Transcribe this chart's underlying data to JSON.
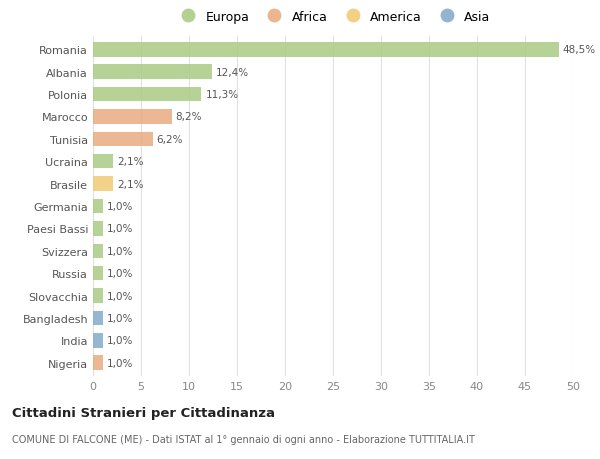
{
  "countries": [
    "Romania",
    "Albania",
    "Polonia",
    "Marocco",
    "Tunisia",
    "Ucraina",
    "Brasile",
    "Germania",
    "Paesi Bassi",
    "Svizzera",
    "Russia",
    "Slovacchia",
    "Bangladesh",
    "India",
    "Nigeria"
  ],
  "values": [
    48.5,
    12.4,
    11.3,
    8.2,
    6.2,
    2.1,
    2.1,
    1.0,
    1.0,
    1.0,
    1.0,
    1.0,
    1.0,
    1.0,
    1.0
  ],
  "labels": [
    "48,5%",
    "12,4%",
    "11,3%",
    "8,2%",
    "6,2%",
    "2,1%",
    "2,1%",
    "1,0%",
    "1,0%",
    "1,0%",
    "1,0%",
    "1,0%",
    "1,0%",
    "1,0%",
    "1,0%"
  ],
  "continent": [
    "Europa",
    "Europa",
    "Europa",
    "Africa",
    "Africa",
    "Europa",
    "America",
    "Europa",
    "Europa",
    "Europa",
    "Europa",
    "Europa",
    "Asia",
    "Asia",
    "Africa"
  ],
  "colors": {
    "Europa": "#a8c97f",
    "Africa": "#e8a87c",
    "America": "#f0c96e",
    "Asia": "#7ea8c9"
  },
  "legend_order": [
    "Europa",
    "Africa",
    "America",
    "Asia"
  ],
  "legend_colors": [
    "#a8c97f",
    "#e8a87c",
    "#f0c96e",
    "#7ea8c9"
  ],
  "title": "Cittadini Stranieri per Cittadinanza",
  "subtitle": "COMUNE DI FALCONE (ME) - Dati ISTAT al 1° gennaio di ogni anno - Elaborazione TUTTITALIA.IT",
  "xlim": [
    0,
    50
  ],
  "xticks": [
    0,
    5,
    10,
    15,
    20,
    25,
    30,
    35,
    40,
    45,
    50
  ],
  "background_color": "#ffffff",
  "grid_color": "#e0e0e0"
}
